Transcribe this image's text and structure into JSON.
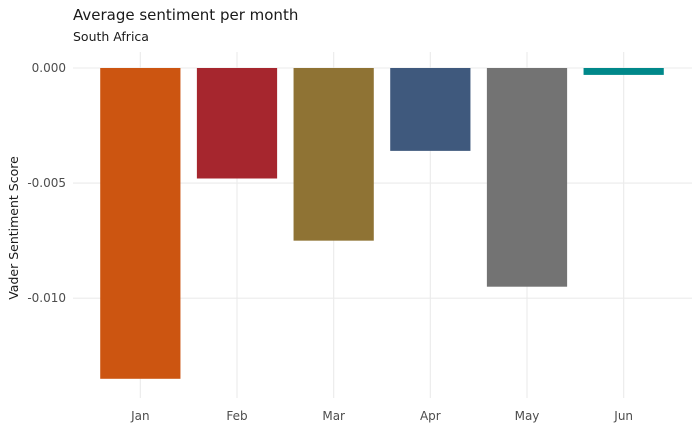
{
  "chart_data": {
    "type": "bar",
    "title": "Average sentiment per month",
    "subtitle": "South Africa",
    "xlabel": "",
    "ylabel": "Vader Sentiment Score",
    "categories": [
      "Jan",
      "Feb",
      "Mar",
      "Apr",
      "May",
      "Jun"
    ],
    "values": [
      -0.0135,
      -0.0048,
      -0.0075,
      -0.0036,
      -0.0095,
      -0.0003
    ],
    "colors": [
      "#CC5511",
      "#A6262E",
      "#8F7334",
      "#3F597D",
      "#737373",
      "#00888A"
    ],
    "yticks": [
      0,
      -0.005,
      -0.01
    ],
    "ytick_labels": [
      "0.000",
      "-0.005",
      "-0.010"
    ],
    "ylim": [
      -0.0139,
      0
    ],
    "grid": true,
    "legend": "none"
  }
}
